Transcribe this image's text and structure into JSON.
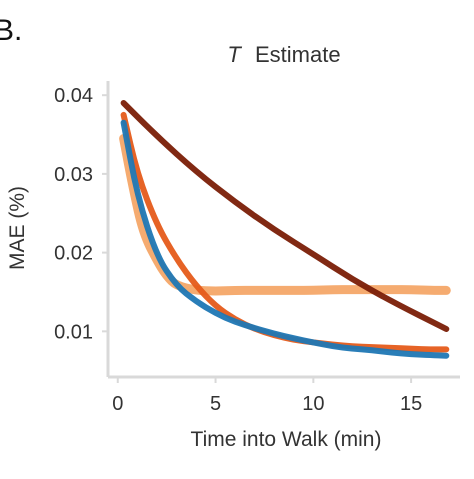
{
  "panel_label": "B.",
  "chart_data": {
    "type": "line",
    "title_italic": "T",
    "title_rest": "Estimate",
    "xlabel": "Time into Walk (min)",
    "ylabel": "MAE (%)",
    "xlim": [
      -0.5,
      17.5
    ],
    "ylim": [
      0.0042,
      0.0418
    ],
    "xticks": [
      0,
      5,
      10,
      15
    ],
    "yticks": [
      0.01,
      0.02,
      0.03,
      0.04
    ],
    "ytick_labels": [
      "0.01",
      "0.02",
      "0.03",
      "0.04"
    ],
    "grid": false,
    "legend": false,
    "series": [
      {
        "color": "#f4a261",
        "points": [
          [
            0.3,
            0.0345
          ],
          [
            0.8,
            0.028
          ],
          [
            1.3,
            0.0225
          ],
          [
            2.0,
            0.019
          ],
          [
            2.5,
            0.017
          ],
          [
            3.0,
            0.0158
          ],
          [
            4.0,
            0.0152
          ],
          [
            5.0,
            0.0151
          ],
          [
            6.0,
            0.0152
          ],
          [
            7.0,
            0.0152
          ],
          [
            8.0,
            0.0152
          ],
          [
            9.0,
            0.0152
          ],
          [
            10.0,
            0.0152
          ],
          [
            11.0,
            0.0153
          ],
          [
            12.0,
            0.0153
          ],
          [
            13.0,
            0.0153
          ],
          [
            14.0,
            0.0153
          ],
          [
            15.0,
            0.0153
          ],
          [
            16.0,
            0.0152
          ],
          [
            16.8,
            0.0152
          ]
        ]
      },
      {
        "color": "#e55b1a",
        "points": [
          [
            0.3,
            0.0375
          ],
          [
            1.0,
            0.03
          ],
          [
            2.0,
            0.0235
          ],
          [
            3.0,
            0.0192
          ],
          [
            4.0,
            0.0158
          ],
          [
            5.0,
            0.0132
          ],
          [
            6.0,
            0.0115
          ],
          [
            7.0,
            0.0103
          ],
          [
            8.0,
            0.0095
          ],
          [
            9.0,
            0.0089
          ],
          [
            10.0,
            0.0086
          ],
          [
            11.0,
            0.0083
          ],
          [
            12.0,
            0.0081
          ],
          [
            13.0,
            0.008
          ],
          [
            14.0,
            0.0079
          ],
          [
            15.0,
            0.0078
          ],
          [
            16.0,
            0.0077
          ],
          [
            16.8,
            0.0077
          ]
        ]
      },
      {
        "color": "#1f77b4",
        "points": [
          [
            0.3,
            0.0365
          ],
          [
            1.0,
            0.0272
          ],
          [
            2.0,
            0.0195
          ],
          [
            3.0,
            0.0158
          ],
          [
            4.0,
            0.0138
          ],
          [
            5.0,
            0.0123
          ],
          [
            6.0,
            0.0112
          ],
          [
            7.0,
            0.0104
          ],
          [
            8.0,
            0.0097
          ],
          [
            9.0,
            0.0091
          ],
          [
            10.0,
            0.0086
          ],
          [
            11.0,
            0.0081
          ],
          [
            12.0,
            0.0078
          ],
          [
            13.0,
            0.0076
          ],
          [
            14.0,
            0.0073
          ],
          [
            15.0,
            0.0071
          ],
          [
            16.0,
            0.007
          ],
          [
            16.8,
            0.0069
          ]
        ]
      },
      {
        "color": "#7a1e06",
        "points": [
          [
            0.3,
            0.039
          ],
          [
            2.0,
            0.0348
          ],
          [
            4.0,
            0.0303
          ],
          [
            6.0,
            0.0264
          ],
          [
            8.0,
            0.0229
          ],
          [
            10.0,
            0.0198
          ],
          [
            12.0,
            0.0166
          ],
          [
            14.0,
            0.0138
          ],
          [
            16.8,
            0.0103
          ]
        ]
      }
    ]
  }
}
